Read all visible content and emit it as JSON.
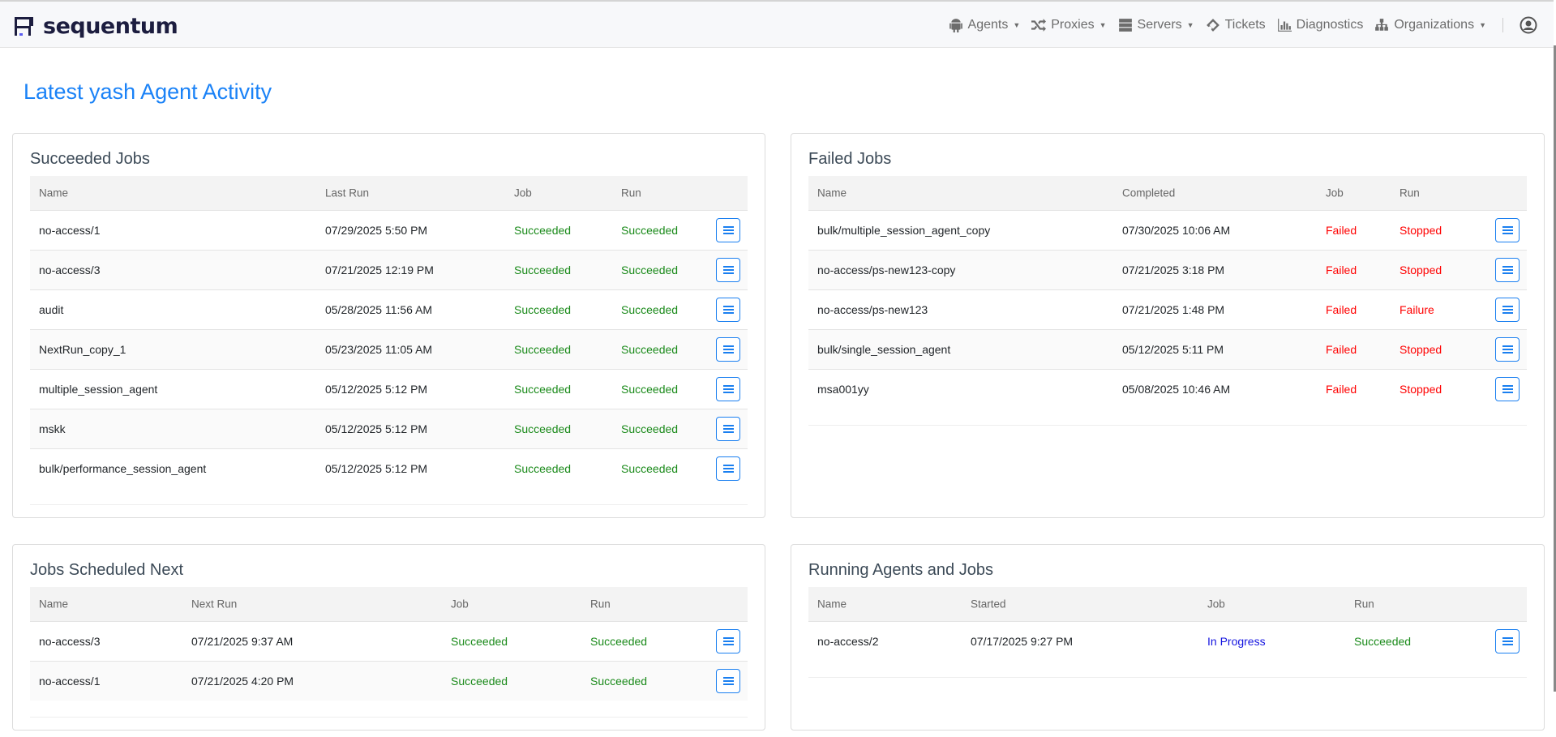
{
  "brand": {
    "name": "sequentum"
  },
  "nav": {
    "items": [
      {
        "label": "Agents",
        "icon": "android-icon",
        "dropdown": true
      },
      {
        "label": "Proxies",
        "icon": "shuffle-icon",
        "dropdown": true
      },
      {
        "label": "Servers",
        "icon": "server-icon",
        "dropdown": true
      },
      {
        "label": "Tickets",
        "icon": "ticket-icon",
        "dropdown": false
      },
      {
        "label": "Diagnostics",
        "icon": "bar-chart-icon",
        "dropdown": false
      },
      {
        "label": "Organizations",
        "icon": "sitemap-icon",
        "dropdown": true
      }
    ],
    "user_icon": "user-circle-icon"
  },
  "page": {
    "title": "Latest yash Agent Activity"
  },
  "colors": {
    "accent": "#1a82f7",
    "success": "#1a8a1a",
    "failed": "#ff0000",
    "in_progress": "#1515e0"
  },
  "succeeded": {
    "title": "Succeeded Jobs",
    "headers": [
      "Name",
      "Last Run",
      "Job",
      "Run"
    ],
    "rows": [
      [
        "no-access/1",
        "07/29/2025 5:50 PM",
        "Succeeded",
        "Succeeded"
      ],
      [
        "no-access/3",
        "07/21/2025 12:19 PM",
        "Succeeded",
        "Succeeded"
      ],
      [
        "audit",
        "05/28/2025 11:56 AM",
        "Succeeded",
        "Succeeded"
      ],
      [
        "NextRun_copy_1",
        "05/23/2025 11:05 AM",
        "Succeeded",
        "Succeeded"
      ],
      [
        "multiple_session_agent",
        "05/12/2025 5:12 PM",
        "Succeeded",
        "Succeeded"
      ],
      [
        "mskk",
        "05/12/2025 5:12 PM",
        "Succeeded",
        "Succeeded"
      ],
      [
        "bulk/performance_session_agent",
        "05/12/2025 5:12 PM",
        "Succeeded",
        "Succeeded"
      ]
    ]
  },
  "failed": {
    "title": "Failed Jobs",
    "headers": [
      "Name",
      "Completed",
      "Job",
      "Run"
    ],
    "rows": [
      [
        "bulk/multiple_session_agent_copy",
        "07/30/2025 10:06 AM",
        "Failed",
        "Stopped"
      ],
      [
        "no-access/ps-new123-copy",
        "07/21/2025 3:18 PM",
        "Failed",
        "Stopped"
      ],
      [
        "no-access/ps-new123",
        "07/21/2025 1:48 PM",
        "Failed",
        "Failure"
      ],
      [
        "bulk/single_session_agent",
        "05/12/2025 5:11 PM",
        "Failed",
        "Stopped"
      ],
      [
        "msa001yy",
        "05/08/2025 10:46 AM",
        "Failed",
        "Stopped"
      ]
    ]
  },
  "scheduled": {
    "title": "Jobs Scheduled Next",
    "headers": [
      "Name",
      "Next Run",
      "Job",
      "Run"
    ],
    "rows": [
      [
        "no-access/3",
        "07/21/2025 9:37 AM",
        "Succeeded",
        "Succeeded"
      ],
      [
        "no-access/1",
        "07/21/2025 4:20 PM",
        "Succeeded",
        "Succeeded"
      ]
    ]
  },
  "running": {
    "title": "Running Agents and Jobs",
    "headers": [
      "Name",
      "Started",
      "Job",
      "Run"
    ],
    "rows": [
      [
        "no-access/2",
        "07/17/2025 9:27 PM",
        "In Progress",
        "Succeeded"
      ]
    ]
  }
}
